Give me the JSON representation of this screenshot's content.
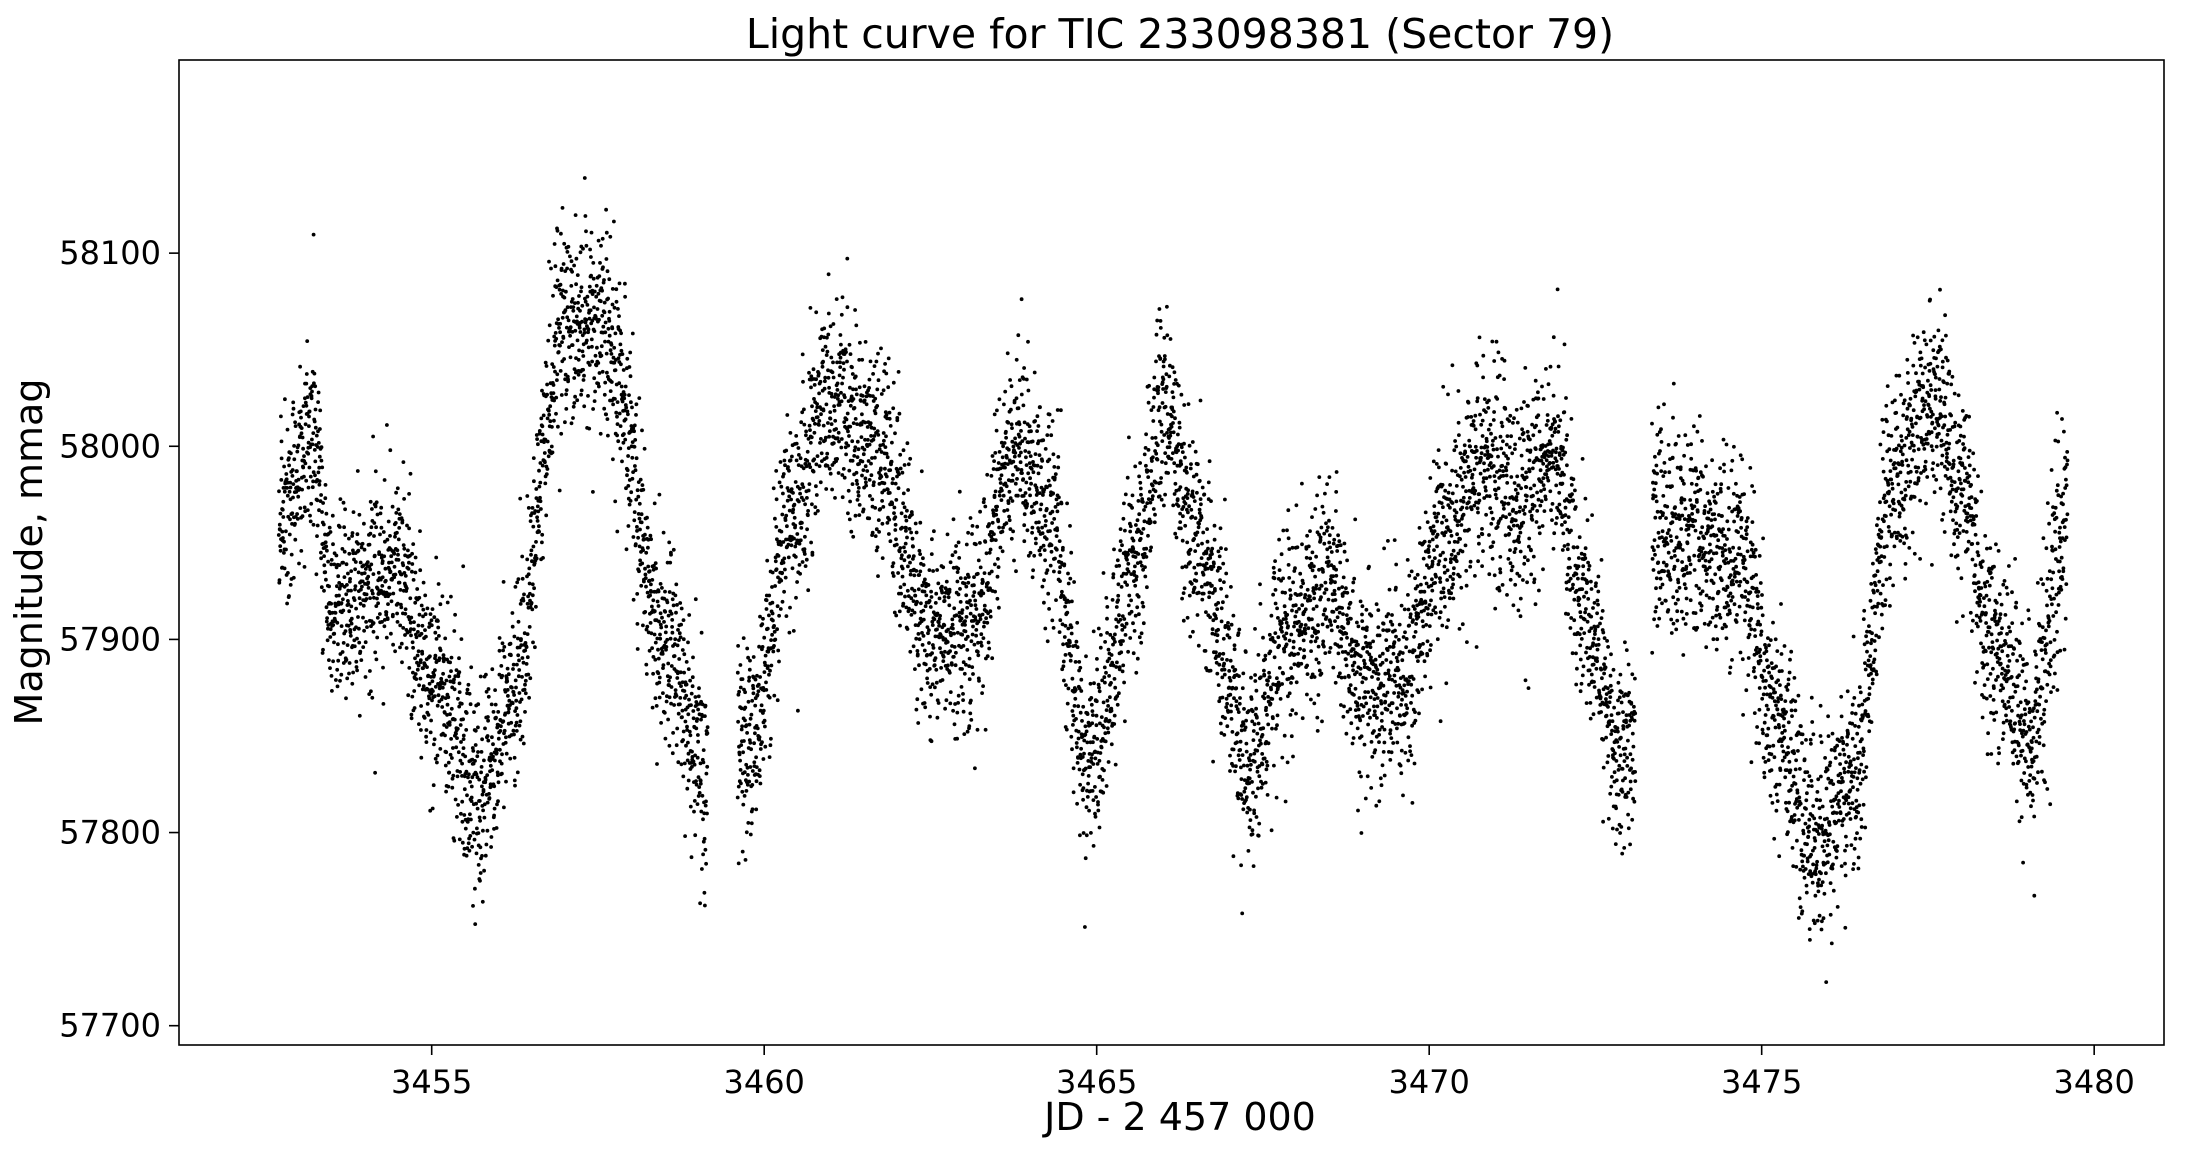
{
  "chart_data": {
    "type": "scatter",
    "title": "Light curve for TIC 233098381 (Sector 79)",
    "xlabel": "JD - 2 457 000",
    "ylabel": "Magnitude, mmag",
    "xlim": [
      3451.2,
      3481.05
    ],
    "ylim": [
      57690,
      58200
    ],
    "xticks": [
      3455,
      3460,
      3465,
      3470,
      3475,
      3480
    ],
    "yticks": [
      57700,
      57800,
      57900,
      58000,
      58100
    ],
    "grid": false,
    "marker_color": "#000000",
    "series": [
      {
        "x_range": [
          3452.7,
          3479.6
        ],
        "trend": {
          "x": [
            3452.7,
            3453.2,
            3453.5,
            3454.5,
            3455.0,
            3455.7,
            3456.2,
            3457.0,
            3457.6,
            3458.5,
            3459.1,
            3459.8,
            3460.4,
            3461.0,
            3461.6,
            3462.6,
            3463.1,
            3463.8,
            3464.3,
            3464.9,
            3465.6,
            3466.0,
            3466.5,
            3467.3,
            3467.9,
            3468.5,
            3469.0,
            3469.6,
            3470.2,
            3470.8,
            3471.3,
            3471.9,
            3472.3,
            3472.9,
            3473.2,
            3473.4,
            3474.0,
            3474.7,
            3475.2,
            3475.8,
            3476.4,
            3477.0,
            3477.5,
            3478.0,
            3478.5,
            3479.0,
            3479.6
          ],
          "y": [
            57960,
            58010,
            57920,
            57935,
            57880,
            57820,
            57870,
            58060,
            58060,
            57900,
            57830,
            57850,
            57960,
            58030,
            58000,
            57900,
            57910,
            58000,
            57960,
            57840,
            57940,
            58020,
            57950,
            57840,
            57900,
            57930,
            57880,
            57880,
            57950,
            57990,
            57970,
            58000,
            57920,
            57840,
            57850,
            57960,
            57950,
            57940,
            57860,
            57800,
            57830,
            57980,
            58020,
            57980,
            57900,
            57850,
            57960
          ]
        },
        "scatter_mmag": 38
      }
    ]
  }
}
